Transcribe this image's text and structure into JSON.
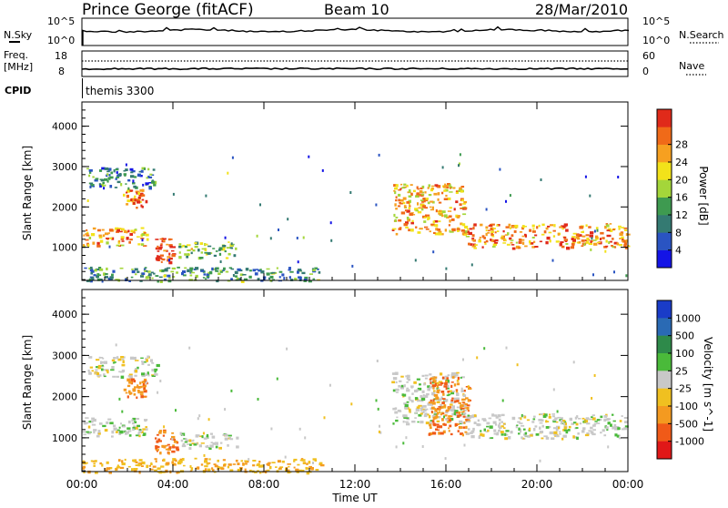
{
  "header": {
    "station": "Prince George (fitACF)",
    "beam": "Beam 10",
    "date": "28/Mar/2010"
  },
  "noise_panel": {
    "left_label": "N.Sky",
    "right_label": "N.Search",
    "left_ticks": [
      "10^5",
      "10^0"
    ],
    "right_ticks": [
      "10^5",
      "10^0"
    ]
  },
  "freq_panel": {
    "left_label_1": "Freq.",
    "left_label_2": "[MHz]",
    "right_label": "Nave",
    "left_ticks": [
      "18",
      "8"
    ],
    "right_ticks": [
      "60",
      "0"
    ]
  },
  "cpid": {
    "label": "CPID",
    "value": "themis 3300"
  },
  "chart_data": [
    {
      "type": "heatmap",
      "panel": "power",
      "ylabel": "Slant Range [km]",
      "ylim": [
        180,
        4600
      ],
      "yticks": [
        "1000",
        "2000",
        "3000",
        "4000"
      ],
      "xlim": [
        "00:00",
        "24:00"
      ],
      "colorbar": {
        "label": "Power [dB]",
        "ticks": [
          "4",
          "8",
          "12",
          "16",
          "20",
          "24",
          "28"
        ],
        "colors": [
          "#1414e6",
          "#2a54c2",
          "#347a72",
          "#3e9a50",
          "#a4d63a",
          "#f2e21a",
          "#f6a020",
          "#f06a18",
          "#e02a1a"
        ]
      },
      "regions": [
        {
          "t0": 0.0,
          "t1": 2.9,
          "r0": 1050,
          "r1": 1500,
          "level": 0.75
        },
        {
          "t0": 0.2,
          "t1": 3.3,
          "r0": 2500,
          "r1": 3000,
          "level": 0.3
        },
        {
          "t0": 1.8,
          "t1": 2.8,
          "r0": 2000,
          "r1": 2450,
          "level": 0.85
        },
        {
          "t0": 3.2,
          "t1": 4.0,
          "r0": 650,
          "r1": 1250,
          "level": 0.95
        },
        {
          "t0": 4.2,
          "t1": 6.8,
          "r0": 750,
          "r1": 1150,
          "level": 0.45
        },
        {
          "t0": 13.6,
          "t1": 16.8,
          "r0": 1350,
          "r1": 2600,
          "level": 0.7
        },
        {
          "t0": 16.8,
          "t1": 24.0,
          "r0": 1000,
          "r1": 1600,
          "level": 0.75
        },
        {
          "t0": 0.0,
          "t1": 10.5,
          "r0": 180,
          "r1": 520,
          "level": 0.35
        }
      ]
    },
    {
      "type": "heatmap",
      "panel": "velocity",
      "ylabel": "Slant Range [km]",
      "ylim": [
        180,
        4600
      ],
      "yticks": [
        "1000",
        "2000",
        "3000",
        "4000"
      ],
      "xlim": [
        "00:00",
        "24:00"
      ],
      "xticks": [
        "00:00",
        "04:00",
        "08:00",
        "12:00",
        "16:00",
        "20:00",
        "00:00"
      ],
      "xlabel": "Time UT",
      "colorbar": {
        "label": "Velocity [m s^-1]",
        "ticks": [
          "1000",
          "500",
          "100",
          "25",
          "-25",
          "-100",
          "-500",
          "-1000"
        ],
        "colors": [
          "#1a3cc8",
          "#2a6ab4",
          "#2e8a4a",
          "#4aba3a",
          "#c8c8c8",
          "#f0c020",
          "#f49a20",
          "#f05a18",
          "#e01818"
        ]
      },
      "regions": [
        {
          "t0": 0.0,
          "t1": 2.9,
          "r0": 1050,
          "r1": 1500,
          "vel": 0.0
        },
        {
          "t0": 0.2,
          "t1": 3.3,
          "r0": 2500,
          "r1": 3000,
          "vel": 0.0
        },
        {
          "t0": 1.8,
          "t1": 2.8,
          "r0": 2000,
          "r1": 2450,
          "vel": -0.5
        },
        {
          "t0": 3.2,
          "t1": 4.2,
          "r0": 650,
          "r1": 1250,
          "vel": -0.55
        },
        {
          "t0": 4.2,
          "t1": 6.8,
          "r0": 750,
          "r1": 1150,
          "vel": 0.0
        },
        {
          "t0": 13.6,
          "t1": 16.8,
          "r0": 1350,
          "r1": 2600,
          "vel": 0.0
        },
        {
          "t0": 15.2,
          "t1": 17.0,
          "r0": 1100,
          "r1": 2500,
          "vel": -0.55
        },
        {
          "t0": 16.8,
          "t1": 24.0,
          "r0": 1000,
          "r1": 1600,
          "vel": 0.0
        },
        {
          "t0": 0.0,
          "t1": 10.5,
          "r0": 180,
          "r1": 520,
          "vel": -0.3
        }
      ]
    }
  ]
}
